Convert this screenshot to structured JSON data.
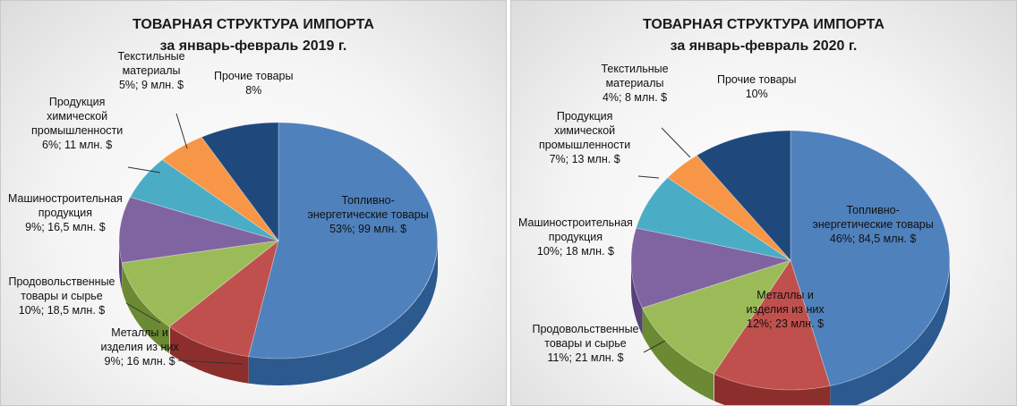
{
  "chart_data": [
    {
      "type": "pie",
      "title": "ТОВАРНАЯ СТРУКТУРА ИМПОРТА",
      "subtitle": "за январь-февраль 2019 г.",
      "slices": [
        {
          "key": "fuel",
          "lines": [
            "Топливно-",
            "энергетические товары",
            "53%; 99 млн. $"
          ],
          "percent": 53,
          "value": 99,
          "color": "#4f81bd",
          "side": "#2c5a8f"
        },
        {
          "key": "metals",
          "lines": [
            "Металлы и",
            "изделия из них",
            "9%; 16 млн. $"
          ],
          "percent": 9,
          "value": 16,
          "color": "#c0504d",
          "side": "#8c2f2c"
        },
        {
          "key": "food",
          "lines": [
            "Продовольственные",
            "товары и сырье",
            "10%; 18,5 млн. $"
          ],
          "percent": 10,
          "value": 18.5,
          "color": "#9bbb59",
          "side": "#6b8a33"
        },
        {
          "key": "machinery",
          "lines": [
            "Машиностроительная",
            "продукция",
            "9%; 16,5 млн. $"
          ],
          "percent": 9,
          "value": 16.5,
          "color": "#8064a2",
          "side": "#58417a"
        },
        {
          "key": "chemical",
          "lines": [
            "Продукция",
            "химической",
            "промышленности",
            "6%; 11 млн. $"
          ],
          "percent": 6,
          "value": 11,
          "color": "#4bacc6",
          "side": "#2d7d93"
        },
        {
          "key": "textile",
          "lines": [
            "Текстильные",
            "материалы",
            "5%; 9 млн. $"
          ],
          "percent": 5,
          "value": 9,
          "color": "#f79646",
          "side": "#b96a25"
        },
        {
          "key": "other",
          "lines": [
            "Прочие товары",
            "8%"
          ],
          "percent": 8,
          "value": null,
          "color": "#1f497d",
          "side": "#142f52"
        }
      ]
    },
    {
      "type": "pie",
      "title": "ТОВАРНАЯ СТРУКТУРА ИМПОРТА",
      "subtitle": "за январь-февраль 2020 г.",
      "slices": [
        {
          "key": "fuel",
          "lines": [
            "Топливно-",
            "энергетические товары",
            "46%; 84,5 млн. $"
          ],
          "percent": 46,
          "value": 84.5,
          "color": "#4f81bd",
          "side": "#2c5a8f"
        },
        {
          "key": "metals",
          "lines": [
            "Металлы и",
            "изделия из них",
            "12%; 23 млн. $"
          ],
          "percent": 12,
          "value": 23,
          "color": "#c0504d",
          "side": "#8c2f2c"
        },
        {
          "key": "food",
          "lines": [
            "Продовольственные",
            "товары и сырье",
            "11%; 21 млн. $"
          ],
          "percent": 11,
          "value": 21,
          "color": "#9bbb59",
          "side": "#6b8a33"
        },
        {
          "key": "machinery",
          "lines": [
            "Машиностроительная",
            "продукция",
            "10%; 18 млн. $"
          ],
          "percent": 10,
          "value": 18,
          "color": "#8064a2",
          "side": "#58417a"
        },
        {
          "key": "chemical",
          "lines": [
            "Продукция",
            "химической",
            "промышленности",
            "7%; 13 млн. $"
          ],
          "percent": 7,
          "value": 13,
          "color": "#4bacc6",
          "side": "#2d7d93"
        },
        {
          "key": "textile",
          "lines": [
            "Текстильные",
            "материалы",
            "4%; 8 млн. $"
          ],
          "percent": 4,
          "value": 8,
          "color": "#f79646",
          "side": "#b96a25"
        },
        {
          "key": "other",
          "lines": [
            "Прочие товары",
            "10%"
          ],
          "percent": 10,
          "value": null,
          "color": "#1f497d",
          "side": "#142f52"
        }
      ]
    }
  ]
}
